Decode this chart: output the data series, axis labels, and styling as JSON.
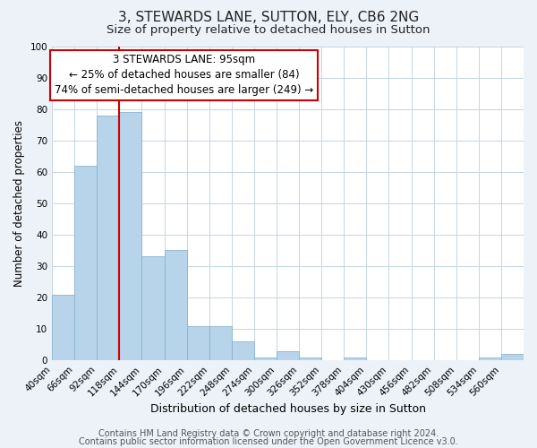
{
  "title": "3, STEWARDS LANE, SUTTON, ELY, CB6 2NG",
  "subtitle": "Size of property relative to detached houses in Sutton",
  "xlabel": "Distribution of detached houses by size in Sutton",
  "ylabel": "Number of detached properties",
  "bar_labels": [
    "40sqm",
    "66sqm",
    "92sqm",
    "118sqm",
    "144sqm",
    "170sqm",
    "196sqm",
    "222sqm",
    "248sqm",
    "274sqm",
    "300sqm",
    "326sqm",
    "352sqm",
    "378sqm",
    "404sqm",
    "430sqm",
    "456sqm",
    "482sqm",
    "508sqm",
    "534sqm",
    "560sqm"
  ],
  "bar_values": [
    21,
    62,
    78,
    79,
    33,
    35,
    11,
    11,
    6,
    1,
    3,
    1,
    0,
    1,
    0,
    0,
    0,
    0,
    0,
    1,
    2
  ],
  "bar_color": "#b8d4ea",
  "bar_edge_color": "#8ab4d0",
  "vline_color": "#cc0000",
  "vline_pos": 3.0,
  "ylim": [
    0,
    100
  ],
  "yticks": [
    0,
    10,
    20,
    30,
    40,
    50,
    60,
    70,
    80,
    90,
    100
  ],
  "annotation_title": "3 STEWARDS LANE: 95sqm",
  "annotation_line1": "← 25% of detached houses are smaller (84)",
  "annotation_line2": "74% of semi-detached houses are larger (249) →",
  "annotation_box_color": "#cc0000",
  "footer1": "Contains HM Land Registry data © Crown copyright and database right 2024.",
  "footer2": "Contains public sector information licensed under the Open Government Licence v3.0.",
  "bg_color": "#edf2f8",
  "plot_bg_color": "#ffffff",
  "grid_color": "#c5d5e5",
  "title_fontsize": 11,
  "subtitle_fontsize": 9.5,
  "xlabel_fontsize": 9,
  "ylabel_fontsize": 8.5,
  "tick_fontsize": 7.5,
  "annotation_fontsize": 8.5,
  "footer_fontsize": 7
}
